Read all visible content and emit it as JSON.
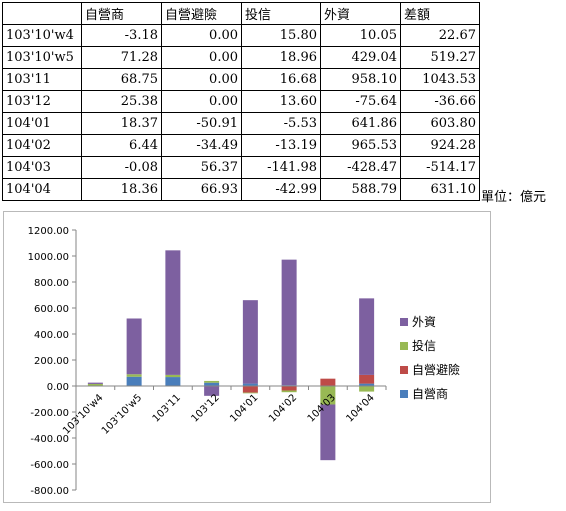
{
  "table": {
    "headers": [
      "",
      "自營商",
      "自營避險",
      "投信",
      "外資",
      "差額"
    ],
    "rows": [
      [
        "103'10'w4",
        "-3.18",
        "0.00",
        "15.80",
        "10.05",
        "22.67"
      ],
      [
        "103'10'w5",
        "71.28",
        "0.00",
        "18.96",
        "429.04",
        "519.27"
      ],
      [
        "103'11",
        "68.75",
        "0.00",
        "16.68",
        "958.10",
        "1043.53"
      ],
      [
        "103'12",
        "25.38",
        "0.00",
        "13.60",
        "-75.64",
        "-36.66"
      ],
      [
        "104'01",
        "18.37",
        "-50.91",
        "-5.53",
        "641.86",
        "603.80"
      ],
      [
        "104'02",
        "6.44",
        "-34.49",
        "-13.19",
        "965.53",
        "924.28"
      ],
      [
        "104'03",
        "-0.08",
        "56.37",
        "-141.98",
        "-428.47",
        "-514.17"
      ],
      [
        "104'04",
        "18.36",
        "66.93",
        "-42.99",
        "588.79",
        "631.10"
      ]
    ]
  },
  "unit_label": "單位：億元",
  "chart_data": {
    "type": "bar",
    "stacked": true,
    "categories": [
      "103'10'w4",
      "103'10'w5",
      "103'11",
      "103'12",
      "104'01",
      "104'02",
      "104'03",
      "104'04"
    ],
    "series": [
      {
        "name": "自營商",
        "color": "#4a7ebb",
        "values": [
          -3.18,
          71.28,
          68.75,
          25.38,
          18.37,
          6.44,
          -0.08,
          18.36
        ]
      },
      {
        "name": "自營避險",
        "color": "#be4b48",
        "values": [
          0,
          0,
          0,
          0,
          -50.91,
          -34.49,
          56.37,
          66.93
        ]
      },
      {
        "name": "投信",
        "color": "#98b954",
        "values": [
          15.8,
          18.96,
          16.68,
          13.6,
          -5.53,
          -13.19,
          -141.98,
          -42.99
        ]
      },
      {
        "name": "外資",
        "color": "#7d60a0",
        "values": [
          10.05,
          429.04,
          958.1,
          -75.64,
          641.86,
          965.53,
          -428.47,
          588.79
        ]
      }
    ],
    "yticks": [
      "1200.00",
      "1000.00",
      "800.00",
      "600.00",
      "400.00",
      "200.00",
      "0.00",
      "-200.00",
      "-400.00",
      "-600.00",
      "-800.00"
    ],
    "ylim": [
      -800,
      1200
    ],
    "legend_order": [
      "外資",
      "投信",
      "自營避險",
      "自營商"
    ],
    "legend_position": "right"
  }
}
